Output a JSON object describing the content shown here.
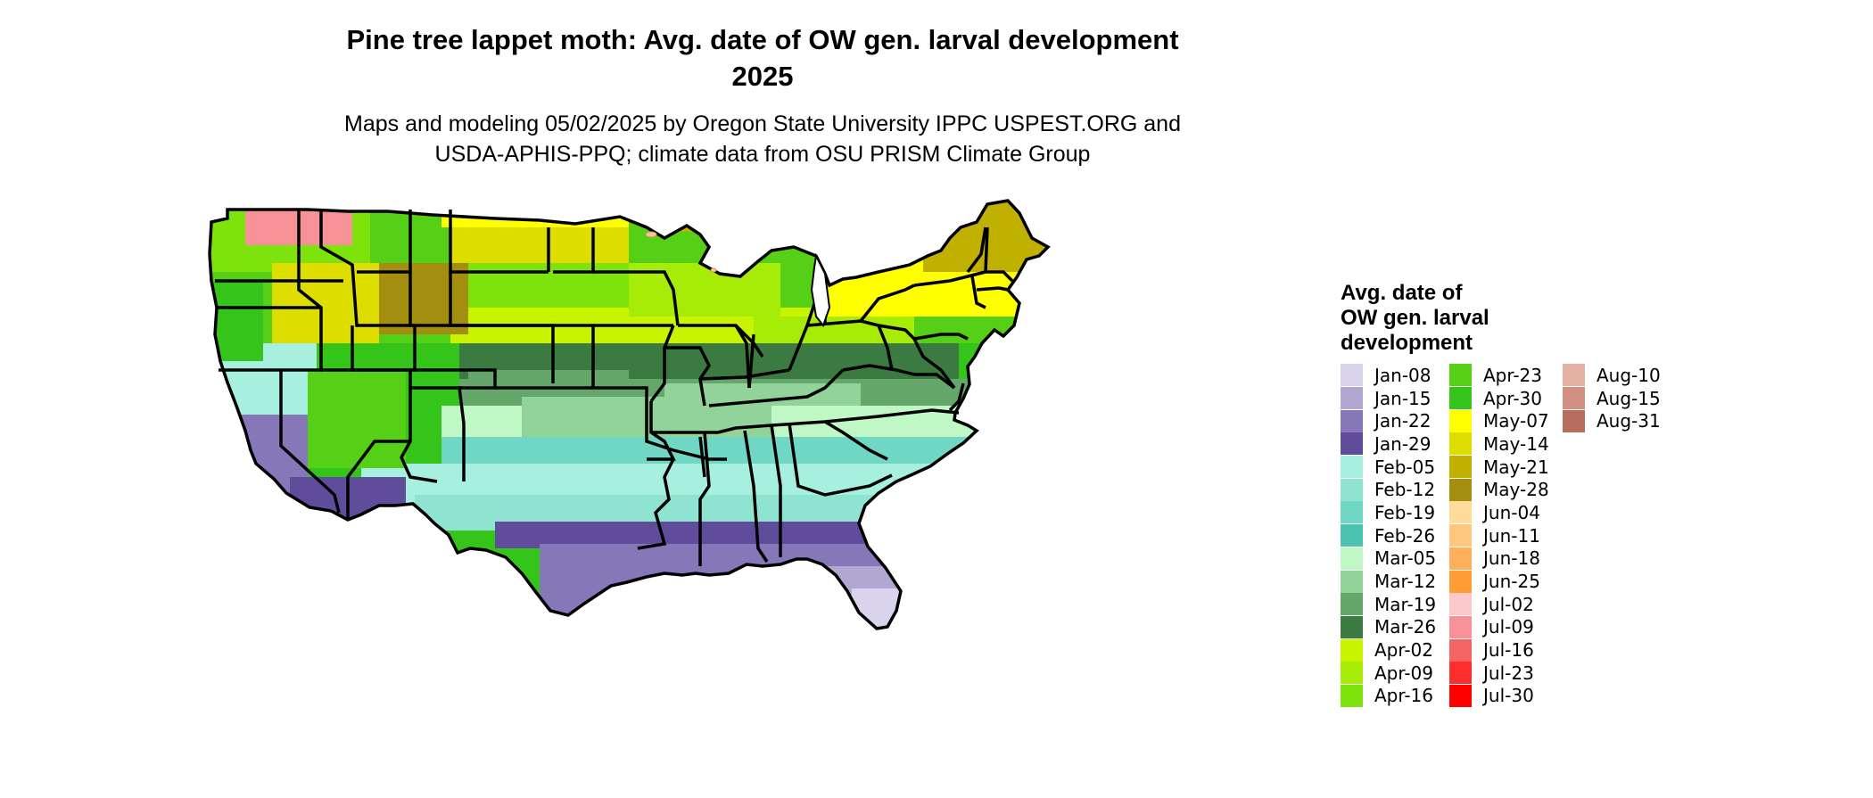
{
  "title": "Pine tree lappet moth: Avg. date of OW gen. larval development\n2025",
  "subtitle": "Maps and modeling 05/02/2025 by Oregon State University IPPC USPEST.ORG and\nUSDA-APHIS-PPQ; climate data from OSU PRISM Climate Group",
  "legend": {
    "title": "Avg. date of\nOW gen. larval\ndevelopment",
    "items": [
      {
        "label": "Jan-08",
        "color": "#dad3ec"
      },
      {
        "label": "Jan-15",
        "color": "#b2a7d2"
      },
      {
        "label": "Jan-22",
        "color": "#8577b8"
      },
      {
        "label": "Jan-29",
        "color": "#5f4c9a"
      },
      {
        "label": "Feb-05",
        "color": "#a7f0e0"
      },
      {
        "label": "Feb-12",
        "color": "#8ee4d0"
      },
      {
        "label": "Feb-19",
        "color": "#6fd7c4"
      },
      {
        "label": "Feb-26",
        "color": "#4dc3b2"
      },
      {
        "label": "Mar-05",
        "color": "#bff8c4"
      },
      {
        "label": "Mar-12",
        "color": "#91d398"
      },
      {
        "label": "Mar-19",
        "color": "#65a66a"
      },
      {
        "label": "Mar-26",
        "color": "#3b7a40"
      },
      {
        "label": "Apr-02",
        "color": "#c8f400"
      },
      {
        "label": "Apr-09",
        "color": "#a6ec07"
      },
      {
        "label": "Apr-16",
        "color": "#7ee30c"
      },
      {
        "label": "Apr-23",
        "color": "#56cf17"
      },
      {
        "label": "Apr-30",
        "color": "#35c41a"
      },
      {
        "label": "May-07",
        "color": "#ffff00"
      },
      {
        "label": "May-14",
        "color": "#dedd00"
      },
      {
        "label": "May-21",
        "color": "#c0b000"
      },
      {
        "label": "May-28",
        "color": "#a48e0f"
      },
      {
        "label": "Jun-04",
        "color": "#ffdc9a"
      },
      {
        "label": "Jun-11",
        "color": "#ffc67e"
      },
      {
        "label": "Jun-18",
        "color": "#ffae5a"
      },
      {
        "label": "Jun-25",
        "color": "#ff9c34"
      },
      {
        "label": "Jul-02",
        "color": "#f9c9cc"
      },
      {
        "label": "Jul-09",
        "color": "#f59197"
      },
      {
        "label": "Jul-16",
        "color": "#f56565"
      },
      {
        "label": "Jul-23",
        "color": "#ff2e2e"
      },
      {
        "label": "Jul-30",
        "color": "#ff0000"
      },
      {
        "label": "Aug-10",
        "color": "#e6b2a6"
      },
      {
        "label": "Aug-15",
        "color": "#d38f83"
      },
      {
        "label": "Aug-31",
        "color": "#b86c5e"
      }
    ]
  }
}
